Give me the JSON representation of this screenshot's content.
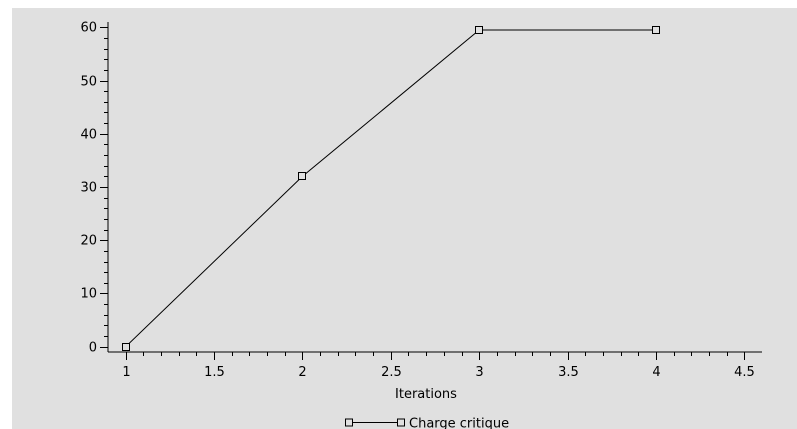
{
  "chart_data": {
    "type": "line",
    "title": "",
    "xlabel": "Iterations",
    "ylabel": "",
    "xlim": [
      0.9,
      4.6
    ],
    "ylim": [
      -1,
      61
    ],
    "xticks": [
      "1",
      "1.5",
      "2",
      "2.5",
      "3",
      "3.5",
      "4",
      "4.5"
    ],
    "yticks": [
      "0",
      "10",
      "20",
      "30",
      "40",
      "50",
      "60"
    ],
    "grid": false,
    "legend_position": "bottom-center",
    "background_color": "#e0e0e0",
    "line_color": "#000000",
    "marker": "square",
    "series": [
      {
        "name": "Charge critique",
        "x": [
          1,
          2,
          3,
          4
        ],
        "y": [
          0,
          32,
          59.5,
          59.5
        ]
      }
    ]
  }
}
